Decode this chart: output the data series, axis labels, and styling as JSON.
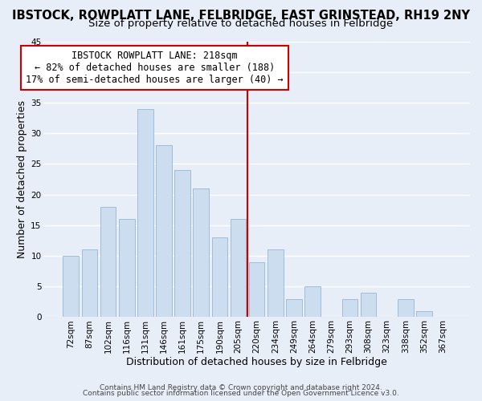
{
  "title": "IBSTOCK, ROWPLATT LANE, FELBRIDGE, EAST GRINSTEAD, RH19 2NY",
  "subtitle": "Size of property relative to detached houses in Felbridge",
  "xlabel": "Distribution of detached houses by size in Felbridge",
  "ylabel": "Number of detached properties",
  "bar_color": "#ccddf0",
  "bar_edgecolor": "#a0bcd8",
  "background_color": "#e8eef8",
  "grid_color": "white",
  "categories": [
    "72sqm",
    "87sqm",
    "102sqm",
    "116sqm",
    "131sqm",
    "146sqm",
    "161sqm",
    "175sqm",
    "190sqm",
    "205sqm",
    "220sqm",
    "234sqm",
    "249sqm",
    "264sqm",
    "279sqm",
    "293sqm",
    "308sqm",
    "323sqm",
    "338sqm",
    "352sqm",
    "367sqm"
  ],
  "values": [
    10,
    11,
    18,
    16,
    34,
    28,
    24,
    21,
    13,
    16,
    9,
    11,
    3,
    5,
    0,
    3,
    4,
    0,
    3,
    1,
    0
  ],
  "ylim": [
    0,
    45
  ],
  "yticks": [
    0,
    5,
    10,
    15,
    20,
    25,
    30,
    35,
    40,
    45
  ],
  "vline_x": 9.5,
  "vline_color": "#cc0000",
  "annotation_line1": "IBSTOCK ROWPLATT LANE: 218sqm",
  "annotation_line2": "← 82% of detached houses are smaller (188)",
  "annotation_line3": "17% of semi-detached houses are larger (40) →",
  "footer1": "Contains HM Land Registry data © Crown copyright and database right 2024.",
  "footer2": "Contains public sector information licensed under the Open Government Licence v3.0.",
  "title_fontsize": 10.5,
  "subtitle_fontsize": 9.5,
  "xlabel_fontsize": 9,
  "ylabel_fontsize": 9,
  "tick_fontsize": 7.5,
  "annotation_fontsize": 8.5,
  "footer_fontsize": 6.5
}
